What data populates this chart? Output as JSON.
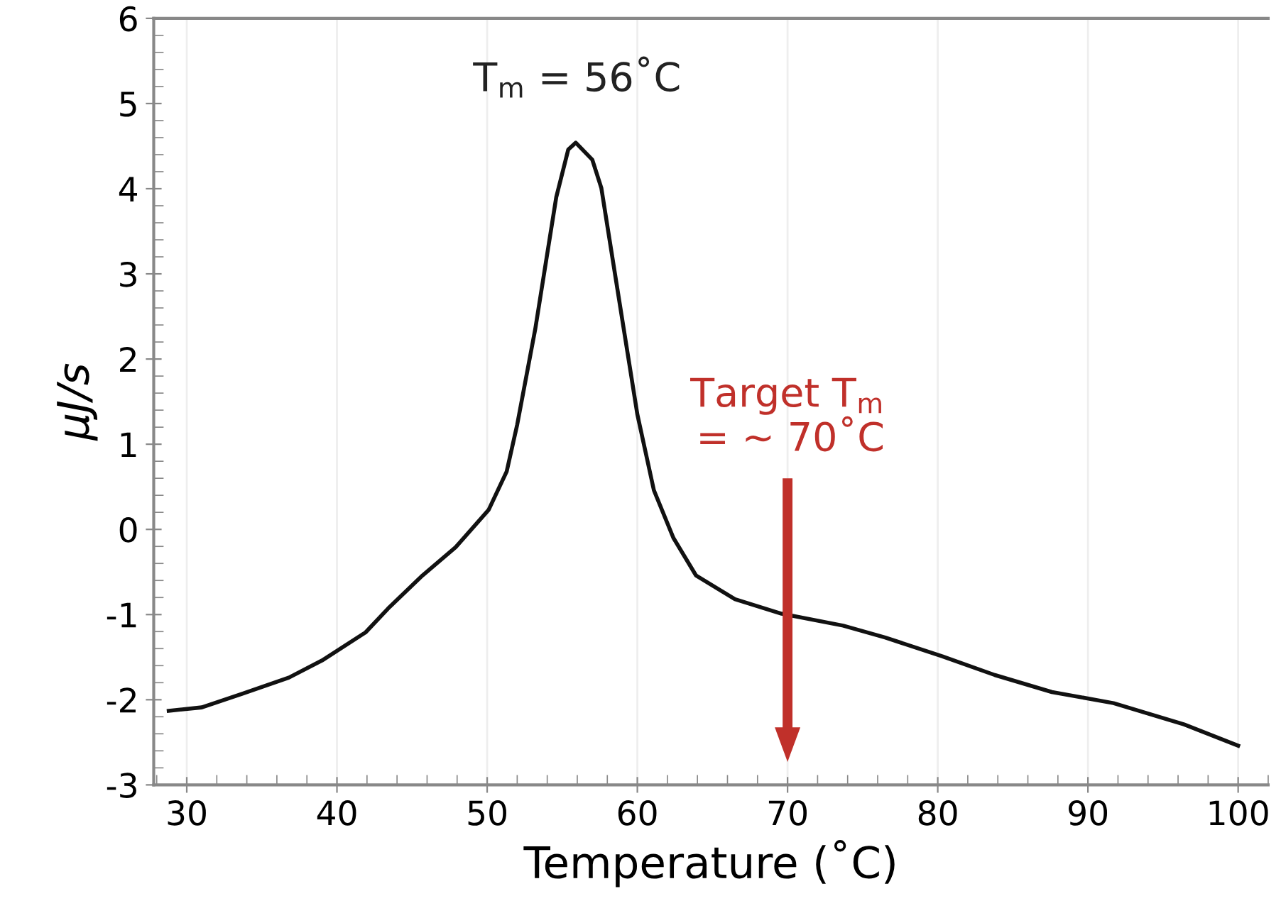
{
  "chart_data": {
    "type": "line",
    "xlabel": "Temperature (˚C)",
    "ylabel": "μJ/s",
    "x": [
      28.8,
      31.0,
      33.7,
      36.8,
      39.0,
      41.9,
      43.4,
      45.7,
      47.9,
      50.1,
      51.3,
      52.0,
      53.2,
      54.6,
      55.4,
      55.9,
      57.0,
      57.6,
      58.6,
      60.0,
      61.1,
      62.4,
      63.9,
      66.5,
      69.6,
      73.7,
      76.5,
      80.3,
      83.8,
      87.6,
      91.7,
      96.4,
      100.0
    ],
    "series": [
      {
        "color": "#111111",
        "values": [
          -2.13,
          -2.09,
          -1.93,
          -1.74,
          -1.54,
          -1.21,
          -0.93,
          -0.54,
          -0.21,
          0.23,
          0.68,
          1.23,
          2.35,
          3.9,
          4.46,
          4.54,
          4.34,
          4.01,
          2.9,
          1.35,
          0.46,
          -0.1,
          -0.54,
          -0.82,
          -0.99,
          -1.13,
          -1.27,
          -1.49,
          -1.71,
          -1.91,
          -2.04,
          -2.29,
          -2.54
        ]
      }
    ],
    "xlim": [
      27.8,
      102
    ],
    "ylim": [
      -3,
      6
    ],
    "xticks": [
      30,
      40,
      50,
      60,
      70,
      80,
      90,
      100
    ],
    "yticks": [
      -3,
      -2,
      -1,
      0,
      1,
      2,
      3,
      4,
      5,
      6
    ],
    "grid": "x",
    "marker": "none",
    "line_style": "solid",
    "legend": false,
    "annotations": [
      {
        "text": "T$_{m}$ = 56˚C",
        "x": 56,
        "y": 4.54
      }
    ],
    "ref_lines": [
      {
        "axis": "x",
        "value": 70,
        "label": "Target T$_{m}$\n= ~ 70˚C",
        "color": "#c0302a"
      }
    ]
  }
}
